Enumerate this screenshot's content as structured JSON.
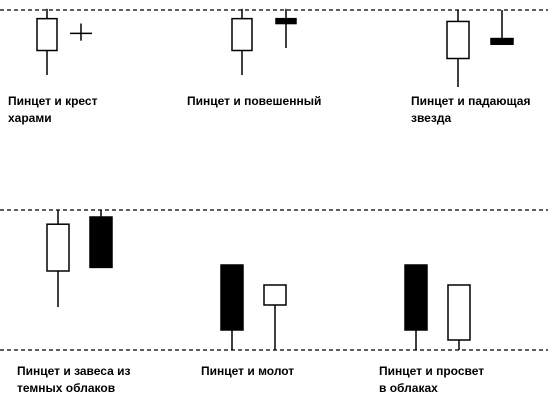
{
  "colors": {
    "background": "#ffffff",
    "ink": "#000000",
    "bullish_body": "#ffffff",
    "bearish_body": "#000000"
  },
  "panels": [
    {
      "label_lines": [
        "Пинцет и крест",
        "харами"
      ],
      "candles": [
        {
          "type": "bullish",
          "high": 27,
          "open": 10,
          "close": 23,
          "low": 0
        },
        {
          "type": "doji",
          "high": 21,
          "open": 17,
          "close": 17,
          "low": 14
        }
      ]
    },
    {
      "label_lines": [
        "Пинцет и повешенный",
        ""
      ],
      "candles": [
        {
          "type": "bullish",
          "high": 27,
          "open": 10,
          "close": 23,
          "low": 0
        },
        {
          "type": "bearish",
          "high": 27,
          "open": 23,
          "close": 21,
          "low": 11
        }
      ]
    },
    {
      "label_lines": [
        "Пинцет и падающая",
        "звезда"
      ],
      "candles": [
        {
          "type": "bullish",
          "high": 27,
          "open": 10,
          "close": 23,
          "low": 0
        },
        {
          "type": "bearish",
          "high": 27,
          "open": 17,
          "close": 15,
          "low": 15
        }
      ]
    },
    {
      "label_lines": [
        "Пинцет и завеса из",
        "темных облаков"
      ],
      "candles": [
        {
          "type": "bullish",
          "high": 27,
          "open": 10,
          "close": 23,
          "low": 0
        },
        {
          "type": "bearish",
          "high": 27,
          "open": 25,
          "close": 11,
          "low": 11
        }
      ]
    },
    {
      "label_lines": [
        "Пинцет и молот",
        ""
      ],
      "candles": [
        {
          "type": "bearish",
          "high": 17,
          "open": 17,
          "close": 4,
          "low": 0
        },
        {
          "type": "bullish",
          "high": 13,
          "open": 9,
          "close": 13,
          "low": 0
        }
      ]
    },
    {
      "label_lines": [
        "Пинцет и просвет",
        "в облаках"
      ],
      "candles": [
        {
          "type": "bearish",
          "high": 17,
          "open": 17,
          "close": 4,
          "low": 0
        },
        {
          "type": "bullish",
          "high": 13,
          "open": 2,
          "close": 13,
          "low": 0
        }
      ]
    }
  ]
}
